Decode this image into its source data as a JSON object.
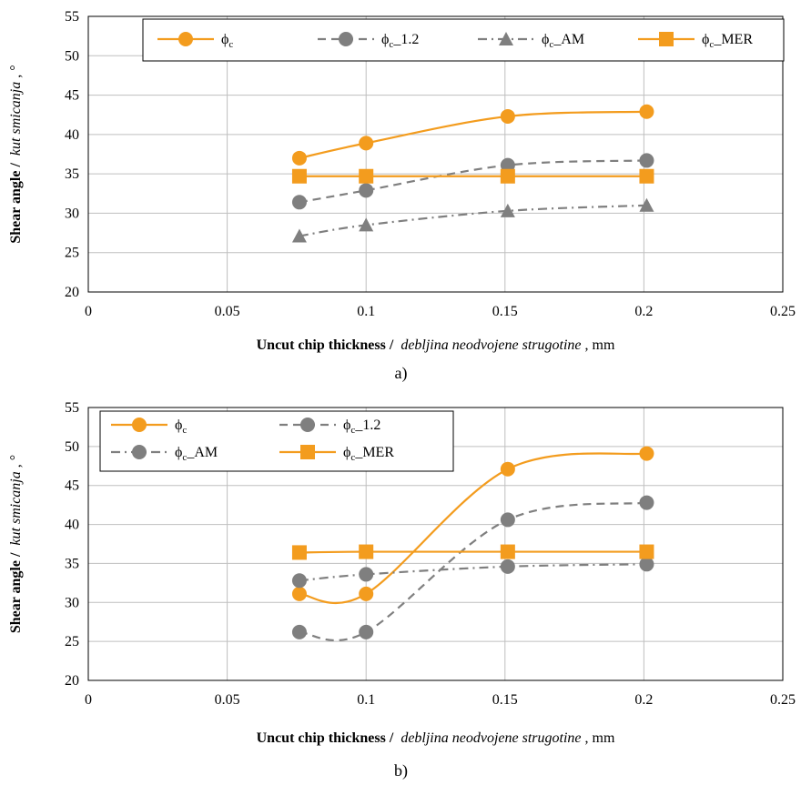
{
  "chart_data": [
    {
      "type": "line",
      "panel_label": "a)",
      "xlabel_bold": "Uncut chip thickness /",
      "xlabel_italic": "debljina neodvojene strugotine",
      "xlabel_unit": ", mm",
      "ylabel_bold": "Shear angle /",
      "ylabel_italic": "kut smicanja",
      "ylabel_unit": ", °",
      "xlim": [
        0,
        0.25
      ],
      "ylim": [
        20,
        55
      ],
      "x_ticks": [
        "0",
        "0.05",
        "0.1",
        "0.15",
        "0.2",
        "0.25"
      ],
      "y_ticks": [
        "20",
        "25",
        "30",
        "35",
        "40",
        "45",
        "50",
        "55"
      ],
      "grid": true,
      "legend": {
        "placement": "top-right",
        "layout": "one-row"
      },
      "series": [
        {
          "name": "ϕ",
          "sub": "c",
          "suffix": "",
          "color": "#F39C1E",
          "dash": "solid",
          "marker": "circle",
          "x": [
            0.076,
            0.1,
            0.151,
            0.201
          ],
          "y": [
            37.0,
            38.9,
            42.3,
            42.9
          ]
        },
        {
          "name": "ϕ",
          "sub": "c",
          "suffix": "_1.2",
          "color": "#7F7F7F",
          "dash": "dash",
          "marker": "circle",
          "x": [
            0.076,
            0.1,
            0.151,
            0.201
          ],
          "y": [
            31.4,
            32.9,
            36.1,
            36.7
          ]
        },
        {
          "name": "ϕ",
          "sub": "c",
          "suffix": "_AM",
          "color": "#7F7F7F",
          "dash": "dashdot",
          "marker": "triangle",
          "x": [
            0.076,
            0.1,
            0.151,
            0.201
          ],
          "y": [
            27.1,
            28.5,
            30.3,
            31.0
          ]
        },
        {
          "name": "ϕ",
          "sub": "c",
          "suffix": "_MER",
          "color": "#F39C1E",
          "dash": "solid",
          "marker": "square",
          "x": [
            0.076,
            0.1,
            0.151,
            0.201
          ],
          "y": [
            34.7,
            34.7,
            34.7,
            34.7
          ]
        }
      ]
    },
    {
      "type": "line",
      "panel_label": "b)",
      "xlabel_bold": "Uncut chip thickness /",
      "xlabel_italic": "debljina neodvojene strugotine",
      "xlabel_unit": ", mm",
      "ylabel_bold": "Shear angle /",
      "ylabel_italic": "kut smicanja",
      "ylabel_unit": ", °",
      "xlim": [
        0,
        0.25
      ],
      "ylim": [
        20,
        55
      ],
      "x_ticks": [
        "0",
        "0.05",
        "0.1",
        "0.15",
        "0.2",
        "0.25"
      ],
      "y_ticks": [
        "20",
        "25",
        "30",
        "35",
        "40",
        "45",
        "50",
        "55"
      ],
      "grid": true,
      "legend": {
        "placement": "top-left",
        "layout": "two-column"
      },
      "series": [
        {
          "name": "ϕ",
          "sub": "c",
          "suffix": "",
          "color": "#F39C1E",
          "dash": "solid",
          "marker": "circle",
          "x": [
            0.076,
            0.1,
            0.151,
            0.201
          ],
          "y": [
            31.1,
            31.1,
            47.1,
            49.1
          ]
        },
        {
          "name": "ϕ",
          "sub": "c",
          "suffix": "_1.2",
          "color": "#7F7F7F",
          "dash": "dash",
          "marker": "circle",
          "x": [
            0.076,
            0.1,
            0.151,
            0.201
          ],
          "y": [
            26.2,
            26.2,
            40.6,
            42.8
          ]
        },
        {
          "name": "ϕ",
          "sub": "c",
          "suffix": "_AM",
          "color": "#7F7F7F",
          "dash": "dashdot",
          "marker": "circle",
          "x": [
            0.076,
            0.1,
            0.151,
            0.201
          ],
          "y": [
            32.8,
            33.6,
            34.6,
            34.9
          ]
        },
        {
          "name": "ϕ",
          "sub": "c",
          "suffix": "_MER",
          "color": "#F39C1E",
          "dash": "solid",
          "marker": "square",
          "x": [
            0.076,
            0.1,
            0.151,
            0.201
          ],
          "y": [
            36.4,
            36.5,
            36.5,
            36.5
          ]
        }
      ]
    }
  ]
}
